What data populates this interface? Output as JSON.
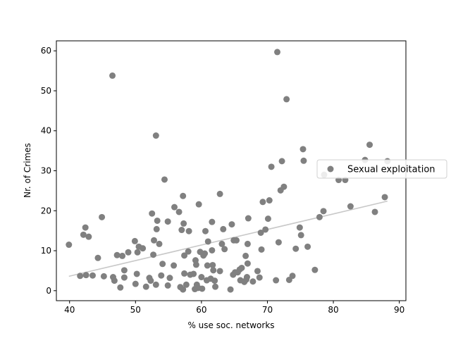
{
  "chart_data": {
    "type": "scatter",
    "title": "",
    "xlabel": "% use soc. networks",
    "ylabel": "Nr. of Crimes",
    "xlim": [
      38,
      91
    ],
    "ylim": [
      -2.5,
      62.5
    ],
    "xticks": [
      40,
      50,
      60,
      70,
      80,
      90
    ],
    "yticks": [
      0,
      10,
      20,
      30,
      40,
      50,
      60
    ],
    "grid": false,
    "legend_position": "right",
    "colors": {
      "points": "#808080",
      "trend": "#c8c8c8",
      "frame": "#000000"
    },
    "series": [
      {
        "name": "Sexual exploitation",
        "points": [
          [
            39.9,
            11.5
          ],
          [
            41.6,
            3.7
          ],
          [
            42.1,
            14.0
          ],
          [
            42.4,
            15.8
          ],
          [
            42.5,
            3.9
          ],
          [
            42.9,
            13.5
          ],
          [
            43.5,
            3.8
          ],
          [
            44.3,
            8.2
          ],
          [
            44.9,
            18.4
          ],
          [
            45.2,
            3.6
          ],
          [
            46.5,
            53.8
          ],
          [
            46.6,
            3.4
          ],
          [
            46.8,
            2.5
          ],
          [
            47.2,
            8.9
          ],
          [
            47.7,
            0.8
          ],
          [
            48.0,
            8.7
          ],
          [
            48.3,
            3.3
          ],
          [
            48.3,
            5.1
          ],
          [
            48.9,
            9.6
          ],
          [
            49.9,
            12.4
          ],
          [
            50.0,
            1.7
          ],
          [
            50.2,
            4.2
          ],
          [
            50.3,
            9.6
          ],
          [
            50.5,
            11.0
          ],
          [
            51.1,
            10.6
          ],
          [
            51.6,
            1.0
          ],
          [
            52.1,
            3.2
          ],
          [
            52.3,
            2.5
          ],
          [
            52.5,
            19.3
          ],
          [
            52.7,
            9.0
          ],
          [
            52.8,
            12.6
          ],
          [
            53.1,
            1.5
          ],
          [
            53.1,
            38.8
          ],
          [
            53.2,
            15.4
          ],
          [
            53.3,
            17.5
          ],
          [
            53.6,
            11.7
          ],
          [
            53.9,
            3.8
          ],
          [
            54.1,
            6.7
          ],
          [
            54.4,
            27.8
          ],
          [
            54.9,
            1.3
          ],
          [
            54.9,
            17.3
          ],
          [
            55.2,
            3.2
          ],
          [
            55.8,
            6.3
          ],
          [
            55.9,
            20.9
          ],
          [
            56.6,
            19.7
          ],
          [
            56.8,
            0.9
          ],
          [
            57.0,
            15.2
          ],
          [
            57.2,
            0.3
          ],
          [
            57.2,
            23.7
          ],
          [
            57.3,
            16.8
          ],
          [
            57.4,
            8.8
          ],
          [
            57.4,
            4.3
          ],
          [
            57.7,
            1.5
          ],
          [
            58.0,
            9.8
          ],
          [
            58.1,
            14.9
          ],
          [
            58.3,
            4.0
          ],
          [
            58.8,
            4.2
          ],
          [
            59.0,
            0.4
          ],
          [
            59.1,
            7.6
          ],
          [
            59.2,
            6.5
          ],
          [
            59.3,
            1.5
          ],
          [
            59.5,
            0.7
          ],
          [
            59.6,
            21.6
          ],
          [
            59.8,
            9.7
          ],
          [
            60.0,
            3.4
          ],
          [
            60.1,
            0.5
          ],
          [
            60.3,
            8.8
          ],
          [
            60.5,
            9.3
          ],
          [
            60.6,
            14.9
          ],
          [
            60.8,
            2.6
          ],
          [
            60.9,
            6.3
          ],
          [
            61.0,
            12.3
          ],
          [
            61.4,
            3.0
          ],
          [
            61.6,
            10.1
          ],
          [
            61.6,
            17.2
          ],
          [
            61.7,
            6.4
          ],
          [
            61.8,
            5.1
          ],
          [
            62.0,
            2.5
          ],
          [
            62.1,
            1.0
          ],
          [
            62.8,
            4.9
          ],
          [
            62.8,
            24.2
          ],
          [
            63.1,
            11.7
          ],
          [
            63.3,
            15.4
          ],
          [
            63.5,
            10.4
          ],
          [
            64.4,
            0.3
          ],
          [
            64.6,
            16.6
          ],
          [
            64.8,
            4.0
          ],
          [
            64.9,
            12.6
          ],
          [
            65.1,
            4.6
          ],
          [
            65.3,
            12.6
          ],
          [
            65.5,
            4.6
          ],
          [
            65.8,
            5.3
          ],
          [
            65.9,
            2.6
          ],
          [
            66.1,
            5.7
          ],
          [
            66.5,
            2.2
          ],
          [
            66.7,
            8.7
          ],
          [
            66.8,
            2.8
          ],
          [
            66.9,
            3.4
          ],
          [
            67.0,
            6.8
          ],
          [
            67.0,
            11.7
          ],
          [
            67.1,
            18.1
          ],
          [
            67.8,
            2.3
          ],
          [
            68.5,
            4.9
          ],
          [
            68.8,
            3.3
          ],
          [
            69.0,
            14.5
          ],
          [
            69.1,
            10.3
          ],
          [
            69.3,
            22.2
          ],
          [
            69.7,
            15.3
          ],
          [
            70.1,
            18.0
          ],
          [
            70.3,
            22.6
          ],
          [
            70.6,
            31.0
          ],
          [
            71.3,
            2.6
          ],
          [
            71.5,
            59.7
          ],
          [
            71.7,
            12.1
          ],
          [
            72.0,
            25.1
          ],
          [
            72.2,
            32.4
          ],
          [
            72.5,
            26.0
          ],
          [
            72.9,
            47.9
          ],
          [
            73.3,
            2.7
          ],
          [
            73.8,
            3.7
          ],
          [
            74.3,
            10.5
          ],
          [
            74.9,
            15.8
          ],
          [
            75.1,
            13.9
          ],
          [
            75.4,
            35.4
          ],
          [
            75.5,
            32.5
          ],
          [
            76.1,
            11.0
          ],
          [
            77.2,
            5.2
          ],
          [
            77.9,
            18.4
          ],
          [
            78.5,
            19.9
          ],
          [
            78.6,
            29.0
          ],
          [
            80.8,
            27.7
          ],
          [
            81.8,
            27.7
          ],
          [
            82.6,
            21.1
          ],
          [
            84.8,
            32.7
          ],
          [
            85.5,
            36.5
          ],
          [
            86.3,
            19.7
          ],
          [
            87.8,
            23.4
          ],
          [
            88.2,
            32.4
          ]
        ]
      }
    ],
    "trendline": {
      "x": [
        39.9,
        88.2
      ],
      "y": [
        3.6,
        22.4
      ]
    }
  }
}
